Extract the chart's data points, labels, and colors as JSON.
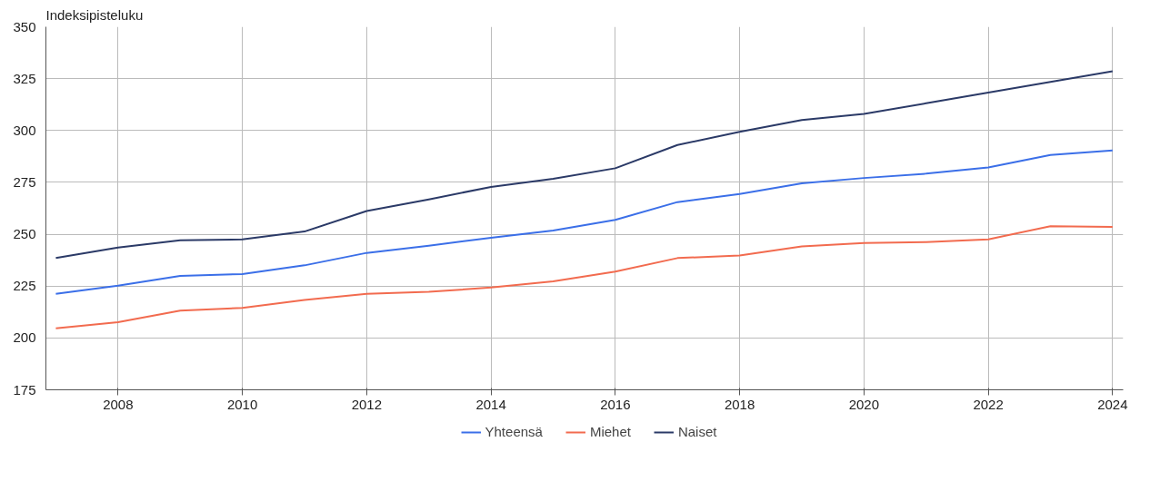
{
  "chart_data": {
    "type": "line",
    "ylabel": "Indeksipisteluku",
    "x": [
      2007,
      2008,
      2009,
      2010,
      2011,
      2012,
      2013,
      2014,
      2015,
      2016,
      2017,
      2018,
      2019,
      2020,
      2021,
      2022,
      2023,
      2024
    ],
    "series": [
      {
        "name": "Yhteensä",
        "color": "#3b6fe8",
        "values": [
          221.3,
          225.2,
          229.9,
          230.8,
          235.0,
          241.0,
          244.5,
          248.3,
          251.8,
          256.9,
          265.5,
          269.4,
          274.5,
          277.1,
          279.2,
          282.2,
          288.2,
          290.4
        ]
      },
      {
        "name": "Miehet",
        "color": "#f26b4f",
        "values": [
          204.6,
          207.6,
          213.2,
          214.5,
          218.3,
          221.3,
          222.2,
          224.3,
          227.3,
          232.0,
          238.5,
          239.8,
          244.1,
          245.8,
          246.2,
          247.5,
          253.9,
          253.5
        ]
      },
      {
        "name": "Naiset",
        "color": "#2b3a67",
        "values": [
          238.5,
          243.6,
          247.1,
          247.5,
          251.3,
          261.2,
          266.8,
          272.8,
          276.7,
          281.8,
          293.0,
          299.4,
          305.0,
          308.0,
          313.1,
          318.3,
          323.4,
          328.6
        ]
      }
    ],
    "xlim": [
      2006.84,
      2024.17
    ],
    "xticks": [
      2008,
      2010,
      2012,
      2014,
      2016,
      2018,
      2020,
      2022,
      2024
    ],
    "ylim": [
      175,
      350
    ],
    "yticks": [
      175,
      200,
      225,
      250,
      275,
      300,
      325,
      350
    ],
    "grid": true,
    "legend": "bottom",
    "marker": "none",
    "line_style": "solid"
  }
}
